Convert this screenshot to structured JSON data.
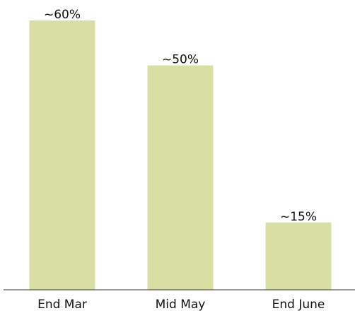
{
  "chart_data": {
    "type": "bar",
    "categories": [
      "End Mar",
      "Mid May",
      "End June"
    ],
    "values": [
      60,
      50,
      15
    ],
    "value_labels": [
      "~60%",
      "~50%",
      "~15%"
    ],
    "color": "#d9dfa3"
  }
}
